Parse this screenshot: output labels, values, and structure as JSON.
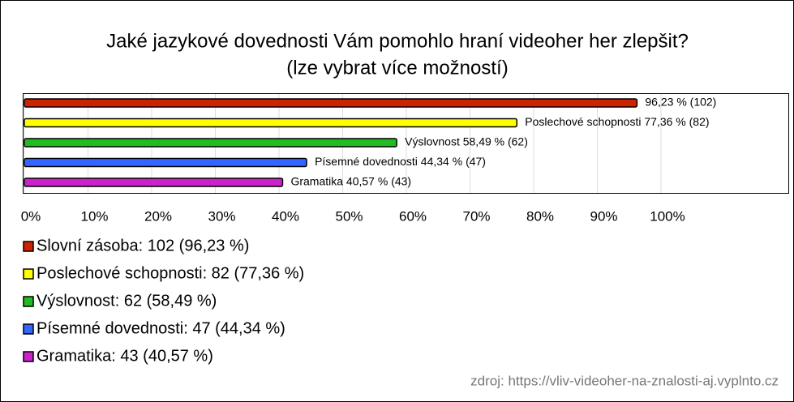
{
  "chart_data": {
    "type": "barh",
    "title": "Jaké jazykové dovednosti Vám pomohlo hraní videoher her zlepšit?",
    "subtitle": "(lze vybrat více možností)",
    "categories": [
      "Slovní zásoba",
      "Poslechové schopnosti",
      "Výslovnost",
      "Písemné dovednosti",
      "Gramatika"
    ],
    "values": [
      96.23,
      77.36,
      58.49,
      44.34,
      40.57
    ],
    "value_labels": [
      "96,23 % (102)",
      "Poslechové schopnosti 77,36 % (82)",
      "Výslovnost 58,49 % (62)",
      "Písemné dovednosti 44,34 % (47)",
      "Gramatika 40,57 % (43)"
    ],
    "colors": [
      "#cc2200",
      "#ffff00",
      "#22bb22",
      "#3366ff",
      "#cc22cc"
    ],
    "legend_labels": [
      "Slovní zásoba: 102 (96,23 %)",
      "Poslechové schopnosti: 82 (77,36 %)",
      "Výslovnost: 62 (58,49 %)",
      "Písemné dovednosti: 47 (44,34 %)",
      "Gramatika: 43 (40,57 %)"
    ],
    "xlim": [
      0,
      100
    ],
    "xticks": [
      {
        "value": 0,
        "label": "0%"
      },
      {
        "value": 10,
        "label": "10%"
      },
      {
        "value": 20,
        "label": "20%"
      },
      {
        "value": 30,
        "label": "30%"
      },
      {
        "value": 40,
        "label": "40%"
      },
      {
        "value": 50,
        "label": "50%"
      },
      {
        "value": 60,
        "label": "60%"
      },
      {
        "value": 70,
        "label": "70%"
      },
      {
        "value": 80,
        "label": "80%"
      },
      {
        "value": 90,
        "label": "90%"
      },
      {
        "value": 100,
        "label": "100%"
      }
    ],
    "grid": true,
    "source": "zdroj: https://vliv-videoher-na-znalosti-aj.vyplnto.cz"
  }
}
